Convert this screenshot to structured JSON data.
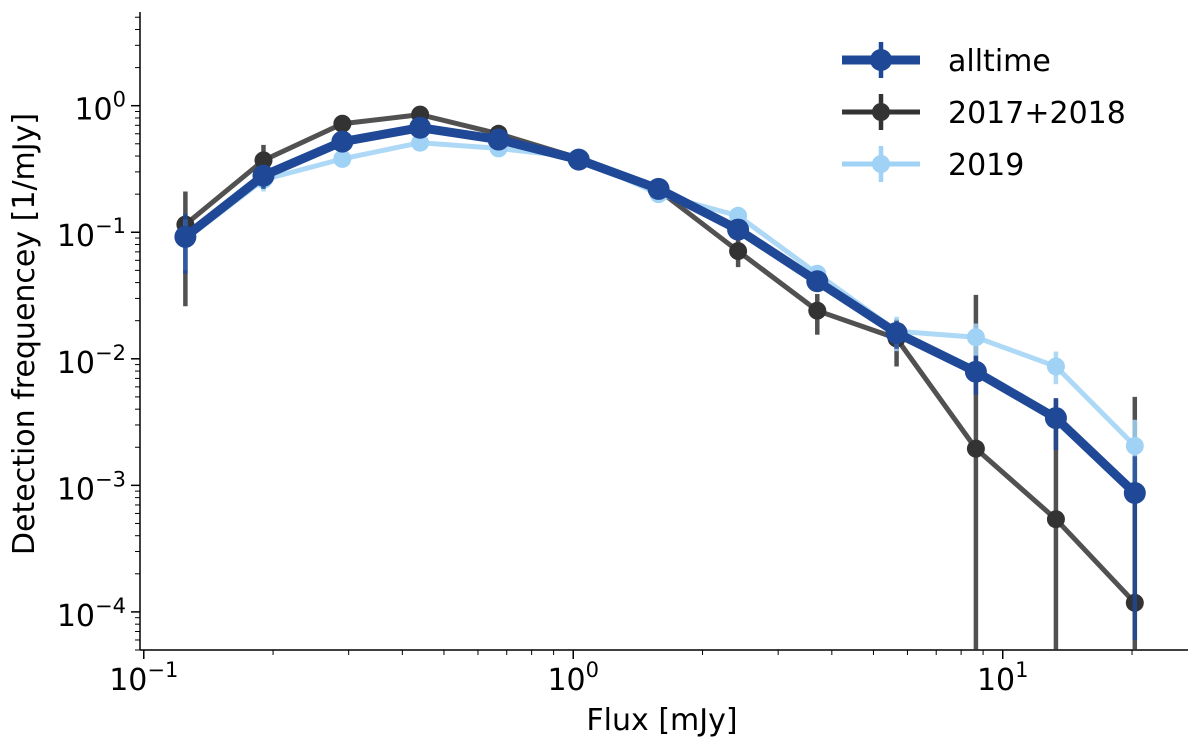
{
  "chart_data": {
    "type": "line",
    "xlabel": "Flux [mJy]",
    "ylabel": "Detection frequencey [1/mJy]",
    "x_scale": "log",
    "y_scale": "log",
    "xlim": [
      0.098,
      27
    ],
    "ylim": [
      5e-05,
      5.5
    ],
    "x_ticks": [
      {
        "value": 0.1,
        "base": "10",
        "exp": "−1"
      },
      {
        "value": 1,
        "base": "10",
        "exp": "0"
      },
      {
        "value": 10,
        "base": "10",
        "exp": "1"
      }
    ],
    "y_ticks": [
      {
        "value": 0.0001,
        "base": "10",
        "exp": "−4"
      },
      {
        "value": 0.001,
        "base": "10",
        "exp": "−3"
      },
      {
        "value": 0.01,
        "base": "10",
        "exp": "−2"
      },
      {
        "value": 0.1,
        "base": "10",
        "exp": "−1"
      },
      {
        "value": 1,
        "base": "10",
        "exp": "0"
      }
    ],
    "grid": false,
    "legend_position": "top-right",
    "series": [
      {
        "name": "alltime",
        "color": "#1f4896",
        "line_width": 9,
        "marker_radius": 11,
        "x": [
          0.125,
          0.19,
          0.29,
          0.44,
          0.67,
          1.03,
          1.58,
          2.42,
          3.7,
          5.66,
          8.66,
          13.3,
          20.3
        ],
        "y": [
          0.092,
          0.28,
          0.52,
          0.67,
          0.54,
          0.375,
          0.22,
          0.105,
          0.041,
          0.016,
          0.0079,
          0.0034,
          0.00087
        ],
        "yerr_low": [
          0.047,
          0.22,
          0.46,
          0.61,
          0.5,
          0.35,
          0.2,
          0.092,
          0.034,
          0.012,
          0.0052,
          0.0019,
          6e-05
        ],
        "yerr_high": [
          0.14,
          0.34,
          0.58,
          0.73,
          0.58,
          0.4,
          0.24,
          0.118,
          0.048,
          0.02,
          0.0106,
          0.0049,
          0.0017
        ]
      },
      {
        "name": "2017+2018",
        "color": "#333333",
        "line_width": 5,
        "marker_radius": 9,
        "x": [
          0.125,
          0.19,
          0.29,
          0.44,
          0.67,
          1.03,
          1.58,
          2.42,
          3.7,
          5.66,
          8.66,
          13.3,
          20.3
        ],
        "y": [
          0.115,
          0.37,
          0.72,
          0.85,
          0.6,
          0.385,
          0.215,
          0.071,
          0.024,
          0.0145,
          0.00195,
          0.00054,
          0.000118
        ],
        "yerr_low": [
          0.026,
          0.26,
          0.6,
          0.74,
          0.52,
          0.35,
          0.19,
          0.053,
          0.0155,
          0.0087,
          1e-05,
          1e-05,
          1e-05
        ],
        "yerr_high": [
          0.21,
          0.49,
          0.84,
          0.96,
          0.68,
          0.42,
          0.24,
          0.089,
          0.0325,
          0.0205,
          0.032,
          0.0048,
          0.005
        ]
      },
      {
        "name": "2019",
        "color": "#9fd2f5",
        "line_width": 5,
        "marker_radius": 9,
        "x": [
          0.125,
          0.19,
          0.29,
          0.44,
          0.67,
          1.03,
          1.58,
          2.42,
          3.7,
          5.66,
          8.66,
          13.3,
          20.3
        ],
        "y": [
          0.088,
          0.26,
          0.38,
          0.51,
          0.46,
          0.39,
          0.2,
          0.135,
          0.047,
          0.0165,
          0.0148,
          0.0087,
          0.00205
        ],
        "yerr_low": [
          0.05,
          0.21,
          0.33,
          0.46,
          0.42,
          0.36,
          0.18,
          0.12,
          0.04,
          0.0115,
          0.0105,
          0.0063,
          0.00085
        ],
        "yerr_high": [
          0.126,
          0.31,
          0.43,
          0.56,
          0.5,
          0.42,
          0.22,
          0.15,
          0.054,
          0.0215,
          0.019,
          0.0114,
          0.0033
        ]
      }
    ]
  }
}
